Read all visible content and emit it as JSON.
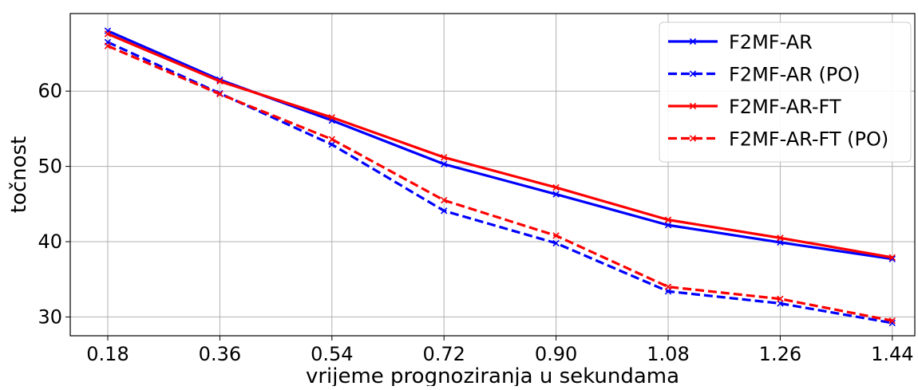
{
  "chart_data": {
    "type": "line",
    "xlabel": "vrijeme prognoziranja u sekundama",
    "ylabel": "točnost",
    "x": [
      "0.18",
      "0.36",
      "0.54",
      "0.72",
      "0.90",
      "1.08",
      "1.26",
      "1.44"
    ],
    "yticks": [
      30,
      40,
      50,
      60
    ],
    "ylim": [
      27.5,
      70.3
    ],
    "grid": true,
    "legend_position": "top-right",
    "series": [
      {
        "name": "F2MF-AR",
        "color": "#0000ff",
        "style": "solid",
        "marker": "x",
        "values": [
          68.0,
          61.5,
          56.1,
          50.3,
          46.3,
          42.2,
          39.9,
          37.7
        ]
      },
      {
        "name": "F2MF-AR (PO)",
        "color": "#0000ff",
        "style": "dashed",
        "marker": "x",
        "values": [
          66.5,
          59.7,
          52.9,
          44.1,
          39.8,
          33.4,
          31.8,
          29.2
        ]
      },
      {
        "name": "F2MF-AR-FT",
        "color": "#ff0000",
        "style": "solid",
        "marker": "x",
        "values": [
          67.6,
          61.3,
          56.5,
          51.2,
          47.2,
          42.9,
          40.5,
          37.9
        ]
      },
      {
        "name": "F2MF-AR-FT (PO)",
        "color": "#ff0000",
        "style": "dashed",
        "marker": "x",
        "values": [
          66.0,
          59.6,
          53.6,
          45.5,
          40.8,
          34.0,
          32.4,
          29.5
        ]
      }
    ]
  }
}
